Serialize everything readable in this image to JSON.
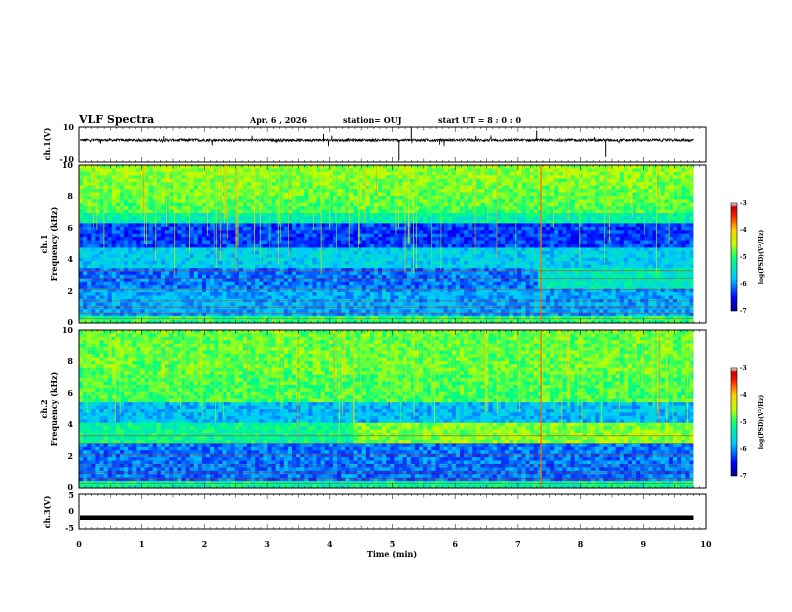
{
  "header": {
    "title": "VLF Spectra",
    "date": "Apr. 6 , 2026",
    "station": "station= OUJ",
    "start": "start  UT =   8 : 0  : 0"
  },
  "colors": {
    "background": "#ffffff",
    "waveform": "#000000",
    "spec_low": "#0a0a8c",
    "spec_mid": "#00d0e0",
    "spec_high": "#ffd000",
    "spec_max": "#c00000"
  },
  "chart_data": {
    "type": "heatmap",
    "xlabel": "Time (min)",
    "xlim": [
      0,
      10
    ],
    "x_ticks": [
      "0",
      "1",
      "2",
      "3",
      "4",
      "5",
      "6",
      "7",
      "8",
      "9",
      "10"
    ],
    "panels": [
      {
        "id": "ch1-waveform",
        "type": "line",
        "ylabel": "ch.1(V)",
        "ylim": [
          -10,
          10
        ],
        "y_ticks": [
          "10",
          "-10"
        ],
        "data_end_min": 9.8,
        "baseline_v": 2.5
      },
      {
        "id": "ch1-spectrogram",
        "type": "heatmap",
        "ylabel_channel": "ch.1",
        "ylabel": "Frequency (kHz)",
        "ylim": [
          0,
          10
        ],
        "y_ticks": [
          "0",
          "2",
          "4",
          "6",
          "8",
          "10"
        ],
        "data_end_min": 9.8,
        "colorbar": {
          "label": "log(PSD)(V²/Hz)",
          "range": [
            -7,
            -3
          ],
          "ticks": [
            "-3",
            "-4",
            "-5",
            "-6",
            "-7"
          ]
        }
      },
      {
        "id": "ch2-spectrogram",
        "type": "heatmap",
        "ylabel_channel": "ch.2",
        "ylabel": "Frequency (kHz)",
        "ylim": [
          0,
          10
        ],
        "y_ticks": [
          "0",
          "2",
          "4",
          "6",
          "8",
          "10"
        ],
        "data_end_min": 9.8,
        "colorbar": {
          "label": "log(PSD)(V²/Hz)",
          "range": [
            -7,
            -3
          ],
          "ticks": [
            "-3",
            "-4",
            "-5",
            "-6",
            "-7"
          ]
        }
      },
      {
        "id": "ch3-waveform",
        "type": "line",
        "ylabel": "ch.3(V)",
        "ylim": [
          -5,
          5
        ],
        "y_ticks": [
          "5",
          "0",
          "-5"
        ],
        "data_end_min": 9.8,
        "baseline_v": -1.8
      }
    ]
  }
}
